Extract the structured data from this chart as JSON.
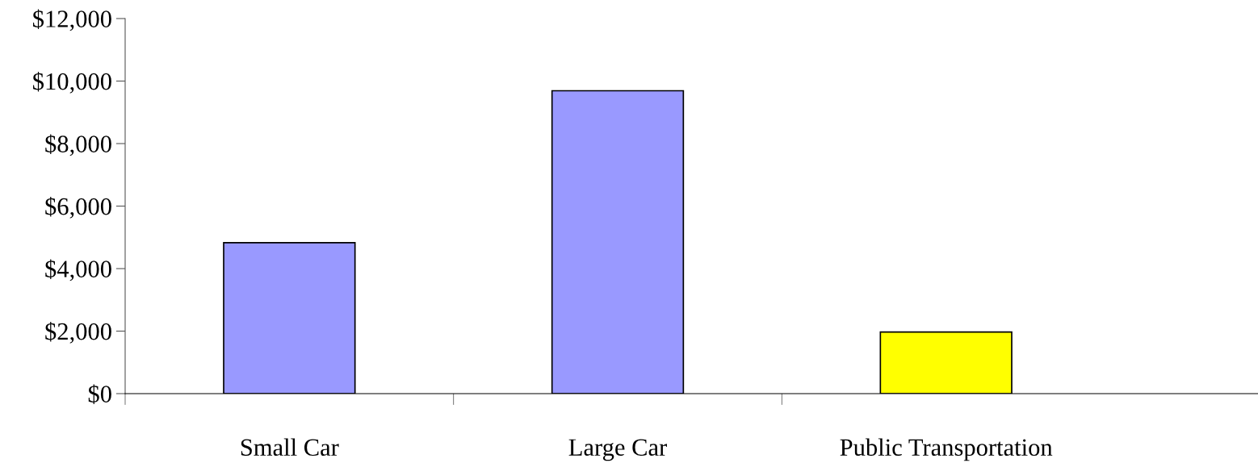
{
  "chart_data": {
    "type": "bar",
    "categories": [
      "Small Car",
      "Large Car",
      "Public Transportation"
    ],
    "values": [
      4830,
      9690,
      1970
    ],
    "colors": [
      "#9999ff",
      "#9999ff",
      "#ffff00"
    ],
    "ylim": [
      0,
      12000
    ],
    "yticks": [
      {
        "value": 0,
        "label": "$0"
      },
      {
        "value": 2000,
        "label": "$2,000"
      },
      {
        "value": 4000,
        "label": "$4,000"
      },
      {
        "value": 6000,
        "label": "$6,000"
      },
      {
        "value": 8000,
        "label": "$8,000"
      },
      {
        "value": 10000,
        "label": "$10,000"
      },
      {
        "value": 12000,
        "label": "$12,000"
      }
    ],
    "grid": false
  }
}
